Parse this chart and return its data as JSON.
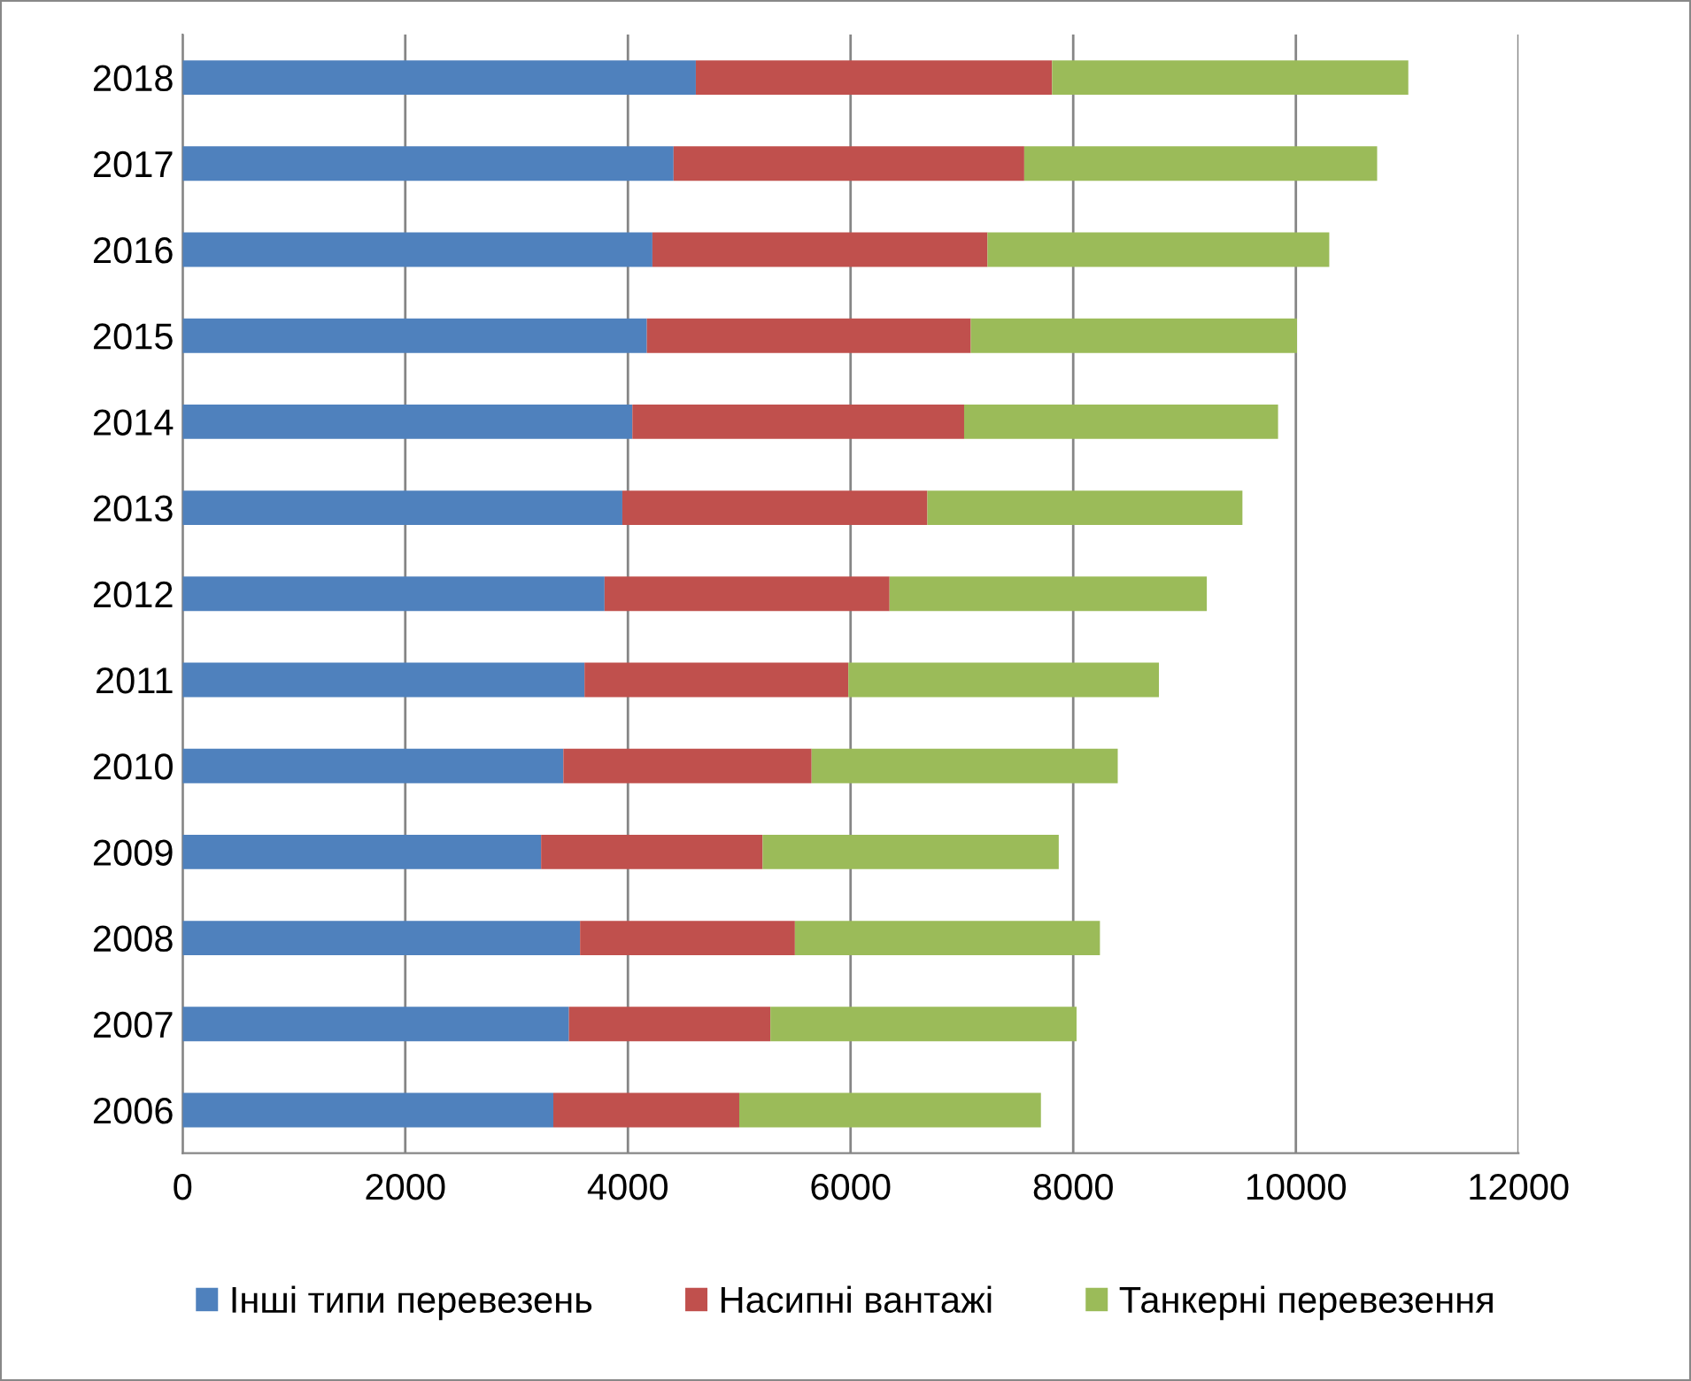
{
  "chart_data": {
    "type": "bar",
    "orientation": "horizontal",
    "stacked": true,
    "categories": [
      "2018",
      "2017",
      "2016",
      "2015",
      "2014",
      "2013",
      "2012",
      "2011",
      "2010",
      "2009",
      "2008",
      "2007",
      "2006"
    ],
    "series": [
      {
        "name": "Інші типи перевезень",
        "color": "#4f81bd",
        "values": [
          4610,
          4410,
          4220,
          4170,
          4040,
          3950,
          3790,
          3610,
          3420,
          3220,
          3570,
          3470,
          3330
        ]
      },
      {
        "name": "Насипні вантажі",
        "color": "#c0504d",
        "values": [
          3200,
          3150,
          3010,
          2910,
          2980,
          2740,
          2560,
          2370,
          2230,
          1990,
          1930,
          1810,
          1670
        ]
      },
      {
        "name": "Танкерні перевезення",
        "color": "#9bbb59",
        "values": [
          3200,
          3170,
          3070,
          2930,
          2820,
          2830,
          2850,
          2790,
          2750,
          2660,
          2740,
          2750,
          2710
        ]
      }
    ],
    "xlim": [
      0,
      12000
    ],
    "xticks": [
      0,
      2000,
      4000,
      6000,
      8000,
      10000,
      12000
    ],
    "grid": "x",
    "legend": "bottom"
  }
}
